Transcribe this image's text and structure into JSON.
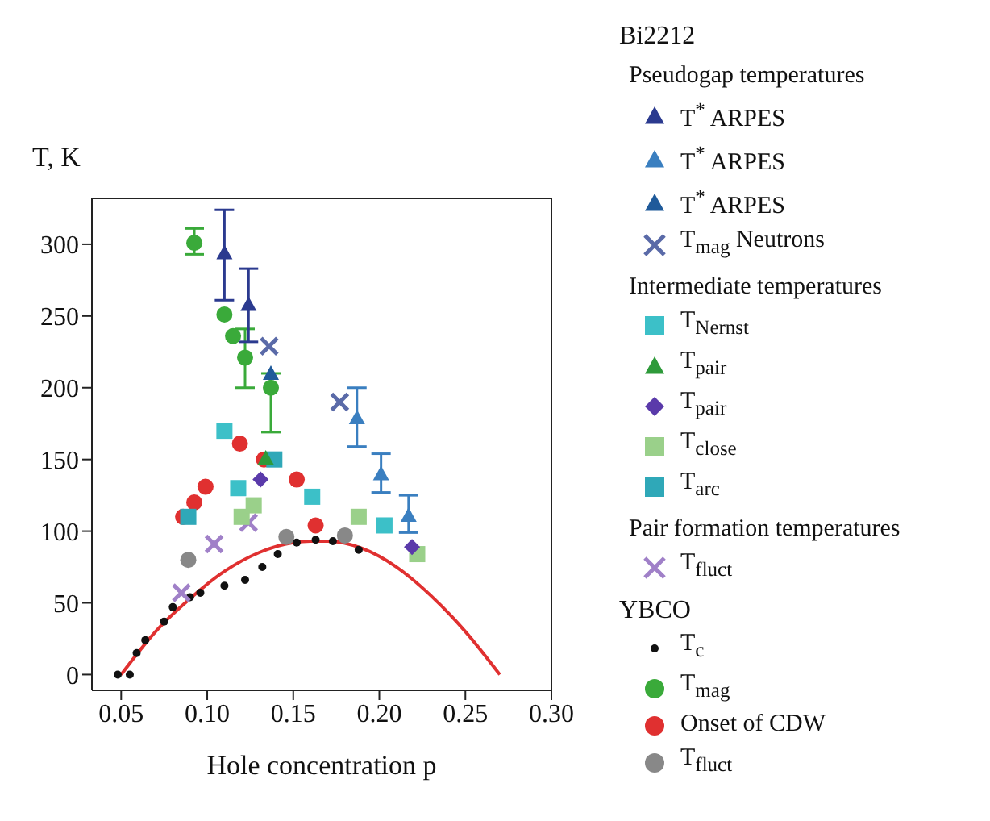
{
  "chart_data": {
    "type": "scatter",
    "xlabel": "Hole concentration p",
    "ylabel": "T, K",
    "xlim": [
      0.033,
      0.3
    ],
    "ylim": [
      -11,
      332
    ],
    "xticks": [
      {
        "value": 0.05,
        "label": "0.05"
      },
      {
        "value": 0.1,
        "label": "0.10"
      },
      {
        "value": 0.15,
        "label": "0.15"
      },
      {
        "value": 0.2,
        "label": "0.20"
      },
      {
        "value": 0.25,
        "label": "0.25"
      },
      {
        "value": 0.3,
        "label": "0.30"
      }
    ],
    "yticks": [
      0,
      50,
      100,
      150,
      200,
      250,
      300
    ],
    "legend": "right",
    "annotations": [
      "Bi2212",
      "Pseudogap temperatures",
      "Intermediate temperatures",
      "Pair formation temperatures",
      "YBCO"
    ],
    "series": [
      {
        "name": "T$^{*}$ ARPES",
        "color": "#2b3a8f",
        "marker": "triangle",
        "x": [
          0.11,
          0.124
        ],
        "values": [
          294,
          258
        ],
        "errors": [
          [
            261,
            324
          ],
          [
            232,
            283
          ]
        ]
      },
      {
        "name": "T$^{*}$ ARPES",
        "color": "#3a7fc0",
        "marker": "triangle",
        "x": [
          0.187,
          0.201,
          0.217
        ],
        "values": [
          179,
          140,
          111
        ],
        "errors": [
          [
            159,
            200
          ],
          [
            127,
            154
          ],
          [
            99,
            125
          ]
        ]
      },
      {
        "name": "T$^{*}$ ARPES",
        "color": "#1f5a9a",
        "marker": "triangle",
        "x": [
          0.137
        ],
        "values": [
          210
        ]
      },
      {
        "name": "T$_{mag}$ Neutrons",
        "color": "#5a6aa8",
        "marker": "cross",
        "x": [
          0.136,
          0.177
        ],
        "values": [
          229,
          190
        ]
      },
      {
        "name": "T$_{Nernst}$",
        "color": "#3cc0c8",
        "marker": "square",
        "x": [
          0.11,
          0.118,
          0.161,
          0.203
        ],
        "values": [
          170,
          130,
          124,
          104
        ]
      },
      {
        "name": "T$_{pair}$",
        "color": "#2e9a3a",
        "marker": "triangle",
        "x": [
          0.134
        ],
        "values": [
          151
        ]
      },
      {
        "name": "T$_{pair}$",
        "color": "#5a3aaa",
        "marker": "diamond",
        "x": [
          0.131,
          0.219
        ],
        "values": [
          136,
          89
        ]
      },
      {
        "name": "T$_{close}$",
        "color": "#9ad08a",
        "marker": "square",
        "x": [
          0.12,
          0.127,
          0.188,
          0.222
        ],
        "values": [
          110,
          118,
          110,
          84
        ]
      },
      {
        "name": "T$_{arc}$",
        "color": "#2fa8b8",
        "marker": "square",
        "x": [
          0.089,
          0.139
        ],
        "values": [
          110,
          150
        ]
      },
      {
        "name": "T$_{fluct}$",
        "color": "#a080c8",
        "marker": "cross",
        "x": [
          0.085,
          0.104,
          0.124
        ],
        "values": [
          57,
          91,
          106
        ]
      },
      {
        "name": "T$_{c}$",
        "color": "#111111",
        "marker": "circle",
        "x": [
          0.048,
          0.055,
          0.059,
          0.064,
          0.075,
          0.08,
          0.09,
          0.096,
          0.11,
          0.122,
          0.132,
          0.141,
          0.152,
          0.163,
          0.173,
          0.188
        ],
        "values": [
          0,
          0,
          15,
          24,
          37,
          47,
          54,
          57,
          62,
          66,
          75,
          84,
          92,
          94,
          93,
          87
        ]
      },
      {
        "name": "T$_{mag}$",
        "color": "#3aaa3a",
        "marker": "circle",
        "x": [
          0.0925,
          0.11,
          0.115,
          0.122,
          0.137
        ],
        "values": [
          301,
          251,
          236,
          221,
          200
        ],
        "errors": [
          [
            293,
            311
          ],
          null,
          null,
          [
            200,
            241
          ],
          [
            169,
            210
          ]
        ]
      },
      {
        "name": "Onset of CDW",
        "color": "#e03030",
        "marker": "circle",
        "x": [
          0.086,
          0.0925,
          0.099,
          0.119,
          0.133,
          0.152,
          0.163
        ],
        "values": [
          110,
          120,
          131,
          161,
          150,
          136,
          104
        ]
      },
      {
        "name": "T$_{fluct}$",
        "color": "#888888",
        "marker": "circle",
        "x": [
          0.089,
          0.146,
          0.18
        ],
        "values": [
          80,
          96,
          97
        ]
      },
      {
        "type": "line",
        "color": "#e03030",
        "x": [
          0.05,
          0.07,
          0.09,
          0.11,
          0.13,
          0.15,
          0.16,
          0.17,
          0.19,
          0.21,
          0.23,
          0.25,
          0.27
        ],
        "values": [
          0,
          30,
          53,
          72,
          85,
          92,
          93,
          93,
          88,
          75,
          55,
          30,
          0
        ]
      }
    ]
  }
}
